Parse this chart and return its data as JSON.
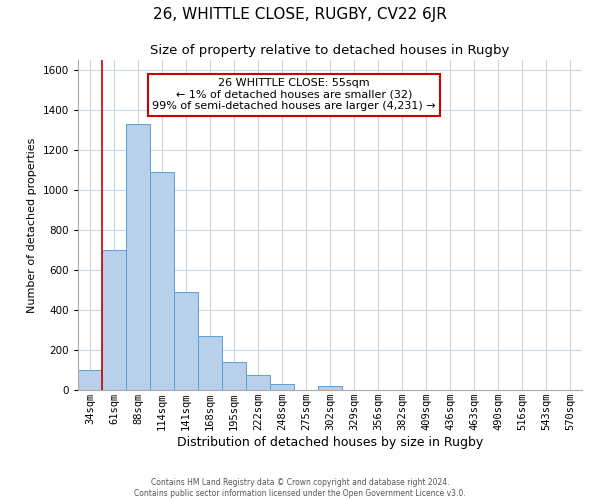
{
  "title": "26, WHITTLE CLOSE, RUGBY, CV22 6JR",
  "subtitle": "Size of property relative to detached houses in Rugby",
  "xlabel": "Distribution of detached houses by size in Rugby",
  "ylabel": "Number of detached properties",
  "bar_labels": [
    "34sqm",
    "61sqm",
    "88sqm",
    "114sqm",
    "141sqm",
    "168sqm",
    "195sqm",
    "222sqm",
    "248sqm",
    "275sqm",
    "302sqm",
    "329sqm",
    "356sqm",
    "382sqm",
    "409sqm",
    "436sqm",
    "463sqm",
    "490sqm",
    "516sqm",
    "543sqm",
    "570sqm"
  ],
  "bar_values": [
    100,
    700,
    1330,
    1090,
    490,
    270,
    140,
    75,
    30,
    0,
    20,
    0,
    0,
    0,
    0,
    0,
    0,
    0,
    0,
    0,
    0
  ],
  "bar_color": "#b8d0ea",
  "bar_edge_color": "#5a9fd4",
  "ylim": [
    0,
    1650
  ],
  "annotation_title": "26 WHITTLE CLOSE: 55sqm",
  "annotation_line1": "← 1% of detached houses are smaller (32)",
  "annotation_line2": "99% of semi-detached houses are larger (4,231) →",
  "vline_x_idx": 0.5,
  "vline_color": "#cc0000",
  "footer1": "Contains HM Land Registry data © Crown copyright and database right 2024.",
  "footer2": "Contains public sector information licensed under the Open Government Licence v3.0.",
  "background_color": "#ffffff",
  "grid_color": "#c8d8e8",
  "title_fontsize": 11,
  "subtitle_fontsize": 9.5,
  "xlabel_fontsize": 9,
  "ylabel_fontsize": 8,
  "tick_fontsize": 7.5,
  "footer_fontsize": 5.5,
  "annot_fontsize": 8
}
